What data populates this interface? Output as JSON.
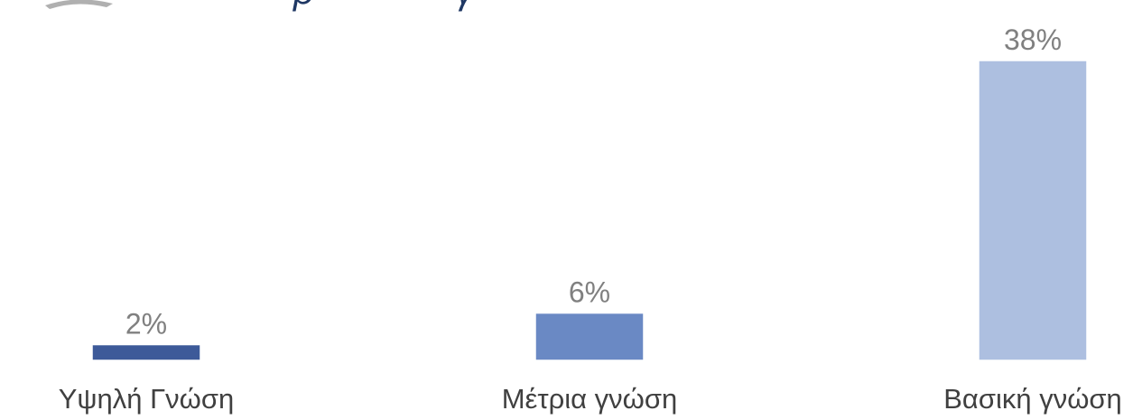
{
  "chart_data": {
    "type": "bar",
    "title": "",
    "xlabel": "",
    "ylabel": "",
    "categories": [
      "Υψηλή Γνώση",
      "Μέτρια γνώση",
      "Βασική γνώση"
    ],
    "values": [
      2,
      6,
      38
    ],
    "data_labels": [
      "2%",
      "6%",
      "38%"
    ],
    "unit": "%",
    "ylim": [
      0,
      40
    ],
    "grid": false,
    "legend": "none",
    "colors": [
      "#3d5a99",
      "#6a89c4",
      "#adbfe0"
    ]
  },
  "colors": {
    "data_label": "#808080",
    "category_label": "#404040",
    "top_strip_text": "#1f3864",
    "top_strip_shape": "#b0b0b0"
  }
}
